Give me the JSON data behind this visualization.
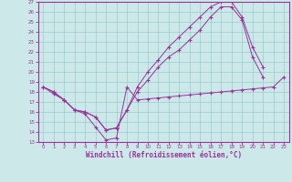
{
  "background_color": "#cce8e8",
  "grid_color": "#99cccc",
  "line_color": "#993399",
  "xlim": [
    -0.5,
    23.5
  ],
  "ylim": [
    13,
    27
  ],
  "xticks": [
    0,
    1,
    2,
    3,
    4,
    5,
    6,
    7,
    8,
    9,
    10,
    11,
    12,
    13,
    14,
    15,
    16,
    17,
    18,
    19,
    20,
    21,
    22,
    23
  ],
  "yticks": [
    13,
    14,
    15,
    16,
    17,
    18,
    19,
    20,
    21,
    22,
    23,
    24,
    25,
    26,
    27
  ],
  "xlabel": "Windchill (Refroidissement éolien,°C)",
  "line1_x": [
    0,
    1,
    2,
    3,
    4,
    5,
    6,
    7,
    8,
    9,
    10,
    11,
    12,
    13,
    14,
    15,
    16,
    17,
    18,
    19,
    20,
    21,
    22,
    23
  ],
  "line1_y": [
    18.5,
    17.8,
    17.2,
    16.2,
    15.8,
    14.5,
    13.2,
    13.4,
    18.5,
    17.2,
    17.3,
    17.4,
    17.5,
    17.6,
    17.7,
    17.8,
    17.9,
    18.0,
    18.1,
    18.2,
    18.3,
    18.4,
    18.5,
    19.5
  ],
  "line2_x": [
    0,
    1,
    2,
    3,
    4,
    5,
    6,
    7,
    8,
    9,
    10,
    11,
    12,
    13,
    14,
    15,
    16,
    17,
    18,
    19,
    20,
    21
  ],
  "line2_y": [
    18.5,
    18.0,
    17.2,
    16.2,
    16.0,
    15.5,
    14.2,
    14.4,
    16.2,
    18.0,
    19.2,
    20.5,
    21.5,
    22.2,
    23.2,
    24.2,
    25.5,
    26.5,
    26.5,
    25.2,
    21.5,
    19.5
  ],
  "line3_x": [
    0,
    1,
    2,
    3,
    4,
    5,
    6,
    7,
    8,
    9,
    10,
    11,
    12,
    13,
    14,
    15,
    16,
    17,
    18,
    19,
    20,
    21
  ],
  "line3_y": [
    18.5,
    18.0,
    17.2,
    16.2,
    16.0,
    15.5,
    14.2,
    14.4,
    16.2,
    18.5,
    20.0,
    21.2,
    22.5,
    23.5,
    24.5,
    25.5,
    26.5,
    27.0,
    27.0,
    25.5,
    22.5,
    20.5
  ]
}
